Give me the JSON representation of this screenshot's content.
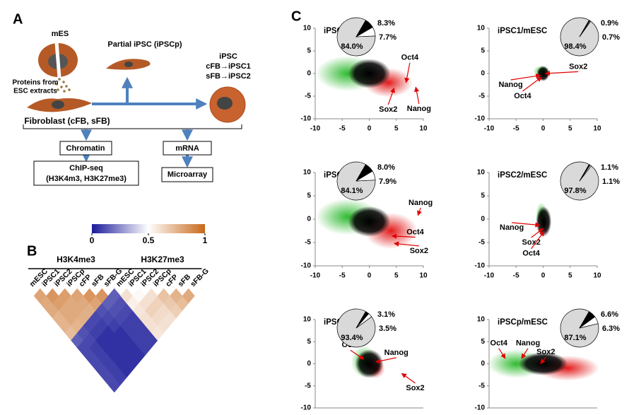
{
  "figure": {
    "panel_a": {
      "label": "A",
      "mes": "mES",
      "proteins": [
        "Proteins from",
        "ESC extracts"
      ],
      "partial": "Partial iPSC (iPSCp)",
      "ipsc": [
        "iPSC",
        "cFB→iPSC1",
        "sFB→iPSC2"
      ],
      "fibroblast": "Fibroblast (cFB, sFB)",
      "chromatin": "Chromatin",
      "mrna": "mRNA",
      "chipseq": [
        "ChIP-seq",
        "(H3K4m3, H3K27me3)"
      ],
      "microarray": "Microarray"
    },
    "panel_b": {
      "label": "B"
    },
    "panel_c": {
      "label": "C"
    }
  },
  "chart_data": [
    {
      "type": "heatmap",
      "groups": [
        "H3K4me3",
        "H3K27me3"
      ],
      "labels": [
        "mESC",
        "iPSC1",
        "iPSC2",
        "iPSCp",
        "cFP",
        "sFB",
        "sFB-G",
        "mESC",
        "iPSC1",
        "iPSC2",
        "iPSCp",
        "cFP",
        "sFB",
        "sFB-G"
      ],
      "colorbar": {
        "ticks": [
          0,
          0.5,
          1
        ],
        "colors": [
          "#1a1a9a",
          "#ffffff",
          "#c8681a"
        ]
      },
      "values": [
        [
          0.8,
          0.78,
          0.78,
          0.75,
          0.75,
          0.72,
          0.15,
          0.1,
          0.1,
          0.1,
          0.1,
          0.1,
          0.1
        ],
        [
          0.85,
          0.82,
          0.78,
          0.78,
          0.75,
          0.12,
          0.1,
          0.08,
          0.08,
          0.08,
          0.08,
          0.08
        ],
        [
          0.82,
          0.78,
          0.78,
          0.76,
          0.1,
          0.08,
          0.05,
          0.05,
          0.05,
          0.05,
          0.05
        ],
        [
          0.8,
          0.78,
          0.76,
          0.1,
          0.08,
          0.05,
          0.05,
          0.05,
          0.05,
          0.05
        ],
        [
          0.85,
          0.8,
          0.12,
          0.1,
          0.08,
          0.05,
          0.05,
          0.05,
          0.05
        ],
        [
          0.85,
          0.15,
          0.12,
          0.1,
          0.08,
          0.08,
          0.08,
          0.08
        ],
        [
          0.15,
          0.12,
          0.1,
          0.08,
          0.08,
          0.08,
          0.08
        ],
        [
          0.6,
          0.55,
          0.58,
          0.6,
          0.6,
          0.58
        ],
        [
          0.52,
          0.6,
          0.65,
          0.62,
          0.6
        ],
        [
          0.6,
          0.65,
          0.62,
          0.6
        ],
        [
          0.7,
          0.68,
          0.66
        ],
        [
          0.75,
          0.72
        ],
        [
          0.78
        ]
      ]
    },
    {
      "type": "scatter",
      "title": "iPSC1/cFB",
      "xlim": [
        -10,
        10
      ],
      "xticks": [
        -10,
        -5,
        0,
        5,
        10
      ],
      "ylim": [
        -10,
        10
      ],
      "yticks": [
        -10,
        -5,
        0,
        5,
        10
      ],
      "annotations": [
        "Oct4",
        "Sox2",
        "Nanog"
      ],
      "pie": {
        "values": [
          84.0,
          8.3,
          7.7
        ],
        "value_labels": [
          "84.0%",
          "8.3%",
          "7.7%"
        ],
        "colors": [
          "#d9d9d9",
          "#000000",
          "#ffffff"
        ]
      }
    },
    {
      "type": "scatter",
      "title": "iPSC1/mESC",
      "xlim": [
        -10,
        10
      ],
      "xticks": [
        -10,
        -5,
        0,
        5,
        10
      ],
      "ylim": [
        -10,
        10
      ],
      "yticks": [
        -10,
        -5,
        0,
        5,
        10
      ],
      "annotations": [
        "Sox2",
        "Nanog",
        "Oct4"
      ],
      "pie": {
        "values": [
          98.4,
          0.9,
          0.7
        ],
        "value_labels": [
          "98.4%",
          "0.9%",
          "0.7%"
        ],
        "colors": [
          "#d9d9d9",
          "#000000",
          "#ffffff"
        ]
      }
    },
    {
      "type": "scatter",
      "title": "iPSC2/sFB",
      "xlim": [
        -10,
        10
      ],
      "xticks": [
        -10,
        -5,
        0,
        5,
        10
      ],
      "ylim": [
        -10,
        10
      ],
      "yticks": [
        -10,
        -5,
        0,
        5,
        10
      ],
      "annotations": [
        "Nanog",
        "Oct4",
        "Sox2"
      ],
      "pie": {
        "values": [
          84.1,
          8.0,
          7.9
        ],
        "value_labels": [
          "84.1%",
          "8.0%",
          "7.9%"
        ],
        "colors": [
          "#d9d9d9",
          "#000000",
          "#ffffff"
        ]
      }
    },
    {
      "type": "scatter",
      "title": "iPSC2/mESC",
      "xlim": [
        -10,
        10
      ],
      "xticks": [
        -10,
        -5,
        0,
        5,
        10
      ],
      "ylim": [
        -10,
        10
      ],
      "yticks": [
        -10,
        -5,
        0,
        5,
        10
      ],
      "annotations": [
        "Nanog",
        "Sox2",
        "Oct4"
      ],
      "pie": {
        "values": [
          97.8,
          1.1,
          1.1
        ],
        "value_labels": [
          "97.8%",
          "1.1%",
          "1.1%"
        ],
        "colors": [
          "#d9d9d9",
          "#000000",
          "#ffffff"
        ]
      }
    },
    {
      "type": "scatter",
      "title": "iPSCp/sFB-G",
      "xlim": [
        -10,
        10
      ],
      "ylim": [
        -10,
        10
      ],
      "yticks": [
        -10,
        -5,
        0,
        5,
        10
      ],
      "annotations": [
        "Oct4",
        "Nanog",
        "Sox2"
      ],
      "pie": {
        "values": [
          93.4,
          3.1,
          3.5
        ],
        "value_labels": [
          "93.4%",
          "3.1%",
          "3.5%"
        ],
        "colors": [
          "#d9d9d9",
          "#000000",
          "#ffffff"
        ]
      }
    },
    {
      "type": "scatter",
      "title": "iPSCp/mESC",
      "xlim": [
        -10,
        10
      ],
      "ylim": [
        -10,
        10
      ],
      "yticks": [
        -10,
        -5,
        0,
        5,
        10
      ],
      "annotations": [
        "Oct4",
        "Nanog",
        "Sox2"
      ],
      "pie": {
        "values": [
          87.1,
          6.6,
          6.3
        ],
        "value_labels": [
          "87.1%",
          "6.6%",
          "6.3%"
        ],
        "colors": [
          "#d9d9d9",
          "#000000",
          "#ffffff"
        ]
      }
    }
  ]
}
